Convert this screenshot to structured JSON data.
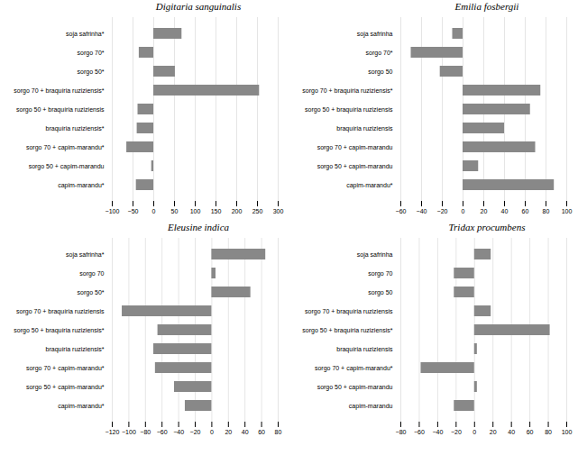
{
  "chart_data": [
    {
      "type": "bar",
      "orientation": "horizontal",
      "title": "Digitaria sanguinalis",
      "categories": [
        "soja safrinha*",
        "sorgo 70*",
        "sorgo 50*",
        "sorgo 70 + braquíria ruziziensis*",
        "sorgo 50 + braquíria ruziziensis",
        "braquíria ruziziensis*",
        "sorgo 70 + capim-marandu*",
        "sorgo 50 + capim-marandu",
        "capim-marandu*"
      ],
      "values": [
        68,
        -35,
        52,
        255,
        -38,
        -40,
        -65,
        -5,
        -42
      ],
      "color": "#888888",
      "xlim": [
        -100,
        300
      ],
      "xticks": [
        -100,
        -50,
        0,
        50,
        100,
        150,
        200,
        250,
        300
      ],
      "grid": true
    },
    {
      "type": "bar",
      "orientation": "horizontal",
      "title": "Emilia fosbergii",
      "categories": [
        "soja safrinha",
        "sorgo 70*",
        "sorgo 50",
        "sorgo 70 + braquíria ruziziensis*",
        "sorgo 50 + braquíria ruziziensis",
        "braquíria ruziziensis",
        "sorgo 70 + capim-marandu",
        "sorgo 50 + capim-marandu",
        "capim-marandu*"
      ],
      "values": [
        -10,
        -50,
        -22,
        75,
        65,
        40,
        70,
        15,
        88
      ],
      "color": "#888888",
      "xlim": [
        -60,
        100
      ],
      "xticks": [
        -60,
        -40,
        -20,
        0,
        20,
        40,
        60,
        80,
        100
      ],
      "grid": true
    },
    {
      "type": "bar",
      "orientation": "horizontal",
      "title": "Eleusine indica",
      "categories": [
        "soja safrinha*",
        "sorgo 70",
        "sorgo 50*",
        "sorgo 70 + braquíria ruziziensis",
        "sorgo 50 + braquíria ruziziensis*",
        "braquíria ruziziensis*",
        "sorgo 70 + capim-marandu*",
        "sorgo 50 + capim-marandu*",
        "capim-marandu*"
      ],
      "values": [
        65,
        5,
        47,
        -108,
        -65,
        -70,
        -68,
        -45,
        -32
      ],
      "color": "#888888",
      "xlim": [
        -120,
        80
      ],
      "xticks": [
        -120,
        -100,
        -80,
        -60,
        -40,
        -20,
        0,
        20,
        40,
        60,
        80
      ],
      "grid": true
    },
    {
      "type": "bar",
      "orientation": "horizontal",
      "title": "Tridax procumbens",
      "categories": [
        "soja safrinha",
        "sorgo 70",
        "sorgo 50",
        "sorgo 70 + braquíria ruziziensis",
        "sorgo 50 + braquíria ruziziensis*",
        "braquíria ruziziensis",
        "sorgo 70 + capim-marandu*",
        "sorgo 50 + capim-marandu",
        "capim-marandu"
      ],
      "values": [
        18,
        -22,
        -22,
        18,
        82,
        3,
        -58,
        3,
        -22
      ],
      "color": "#888888",
      "xlim": [
        -80,
        100
      ],
      "xticks": [
        -80,
        -60,
        -40,
        -20,
        0,
        20,
        40,
        60,
        80,
        100
      ],
      "grid": true
    }
  ]
}
